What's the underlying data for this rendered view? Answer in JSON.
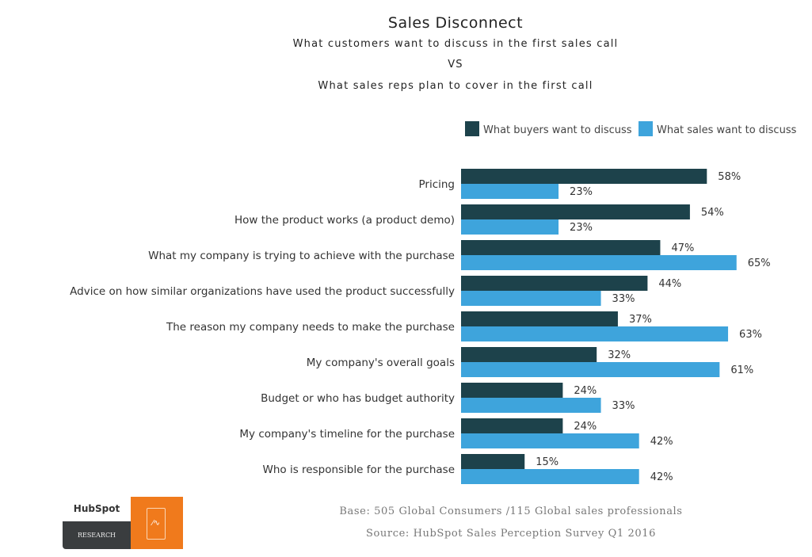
{
  "chart_data": {
    "type": "bar",
    "orientation": "horizontal",
    "title": "Sales Disconnect",
    "subtitle": [
      "What customers want to discuss in the first sales call",
      "VS",
      "What sales reps plan to cover in the first call"
    ],
    "categories": [
      "Pricing",
      "How the product works (a product demo)",
      "What my company is trying to achieve with the purchase",
      "Advice on how similar organizations have used the product successfully",
      "The reason my company needs to make the purchase",
      "My company's overall goals",
      "Budget or who has budget authority",
      "My company's timeline for the purchase",
      "Who is responsible for the purchase"
    ],
    "series": [
      {
        "name": "What buyers want to discuss",
        "color": "#1d424b",
        "values": [
          58,
          54,
          47,
          44,
          37,
          32,
          24,
          24,
          15
        ]
      },
      {
        "name": "What sales want to discuss",
        "color": "#3ea4dc",
        "values": [
          23,
          23,
          65,
          33,
          63,
          61,
          33,
          42,
          42
        ]
      }
    ],
    "value_suffix": "%",
    "legend": "top-right",
    "grid": false
  },
  "footer": {
    "base": "Base: 505 Global Consumers /115 Global sales professionals",
    "source": "Source: HubSpot Sales Perception Survey Q1 2016"
  },
  "logo": {
    "brand": "HubSpot",
    "label": "RESEARCH"
  }
}
